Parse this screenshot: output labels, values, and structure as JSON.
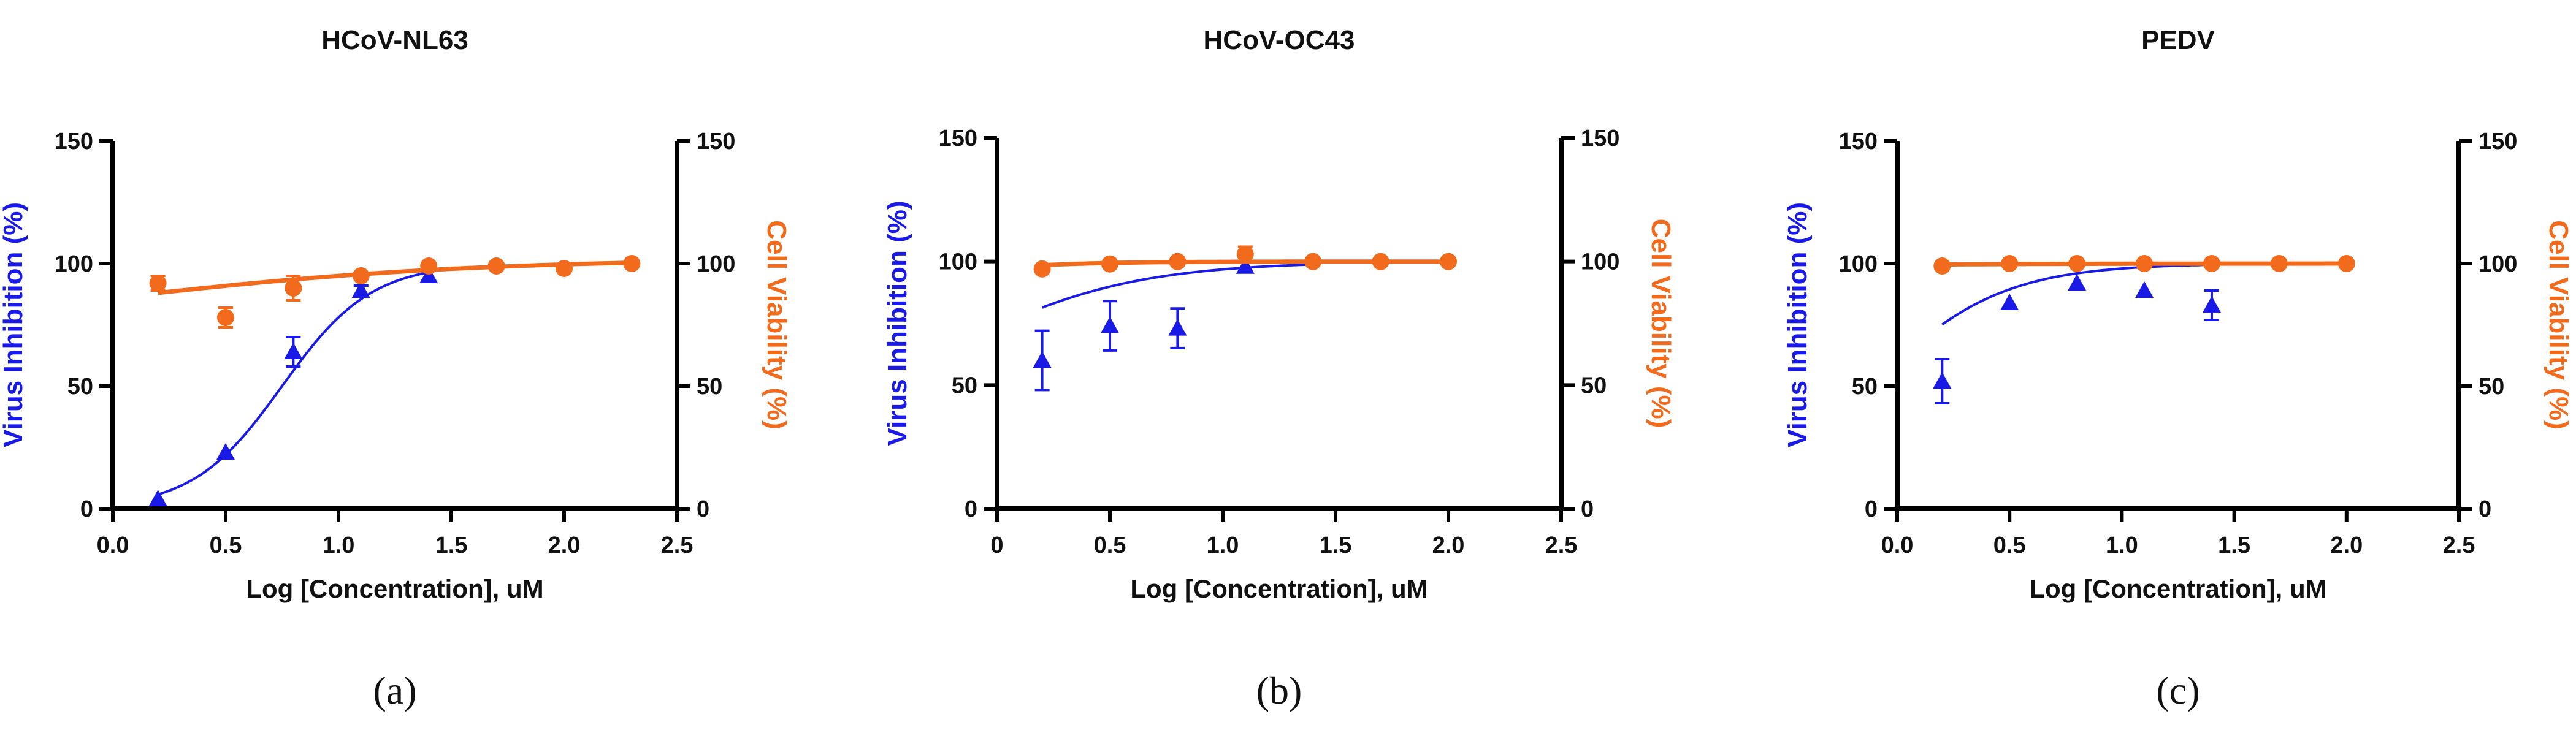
{
  "colors": {
    "inhibition": "#1a1ae6",
    "viability": "#f26a1b",
    "axis": "#000000"
  },
  "chart_data": [
    {
      "type": "scatter",
      "title": "HCoV-NL63",
      "panel_label": "(a)",
      "xlabel": "Log [Concentration], uM",
      "ylabel_left": "Virus Inhibition (%)",
      "ylabel_right": "Cell Viability (%)",
      "xlim": [
        0,
        2.5
      ],
      "ylim_left": [
        0,
        150
      ],
      "ylim_right": [
        0,
        150
      ],
      "x_ticks": [
        "0.0",
        "0.5",
        "1.0",
        "1.5",
        "2.0",
        "2.5"
      ],
      "y_ticks_left": [
        "0",
        "50",
        "100",
        "150"
      ],
      "y_ticks_right": [
        "0",
        "50",
        "100",
        "150"
      ],
      "series": [
        {
          "name": "Virus Inhibition",
          "axis": "left",
          "marker": "triangle",
          "x": [
            0.2,
            0.5,
            0.8,
            1.1,
            1.4
          ],
          "y": [
            4,
            23,
            64,
            89,
            95
          ],
          "err": [
            0,
            0,
            6,
            2,
            2
          ],
          "fit": {
            "bottom": 0,
            "top": 100,
            "logec50": 0.75,
            "hill": 2.2,
            "xmin": 0.2,
            "xmax": 1.4
          }
        },
        {
          "name": "Cell Viability",
          "axis": "right",
          "marker": "circle",
          "x": [
            0.2,
            0.5,
            0.8,
            1.1,
            1.4,
            1.7,
            2.0,
            2.3
          ],
          "y": [
            92,
            78,
            90,
            95,
            99,
            99,
            98,
            100
          ],
          "err": [
            3,
            4,
            5,
            0,
            0,
            0,
            0,
            0
          ],
          "fit": {
            "bottom": 70,
            "top": 102,
            "logec50": 0.0,
            "hill": 0.55,
            "xmin": 0.2,
            "xmax": 2.3
          }
        }
      ]
    },
    {
      "type": "scatter",
      "title": "HCoV-OC43",
      "panel_label": "(b)",
      "xlabel": "Log [Concentration], uM",
      "ylabel_left": "Virus Inhibition (%)",
      "ylabel_right": "Cell Viability (%)",
      "xlim": [
        0,
        2.5
      ],
      "ylim_left": [
        0,
        150
      ],
      "ylim_right": [
        0,
        150
      ],
      "x_ticks": [
        "0",
        "0.5",
        "1.0",
        "1.5",
        "2.0",
        "2.5"
      ],
      "y_ticks_left": [
        "0",
        "50",
        "100",
        "150"
      ],
      "y_ticks_right": [
        "0",
        "50",
        "100",
        "150"
      ],
      "series": [
        {
          "name": "Virus Inhibition",
          "axis": "left",
          "marker": "triangle",
          "x": [
            0.2,
            0.5,
            0.8,
            1.1
          ],
          "y": [
            60,
            74,
            73,
            98
          ],
          "err": [
            12,
            10,
            8,
            0
          ],
          "fit": {
            "bottom": 30,
            "top": 100,
            "logec50": -0.2,
            "hill": 1.1,
            "xmin": 0.2,
            "xmax": 1.4
          }
        },
        {
          "name": "Cell Viability",
          "axis": "right",
          "marker": "circle",
          "x": [
            0.2,
            0.5,
            0.8,
            1.1,
            1.4,
            1.7,
            2.0
          ],
          "y": [
            97,
            99,
            100,
            103,
            100,
            100,
            100
          ],
          "err": [
            0,
            0,
            0,
            3,
            0,
            0,
            0
          ],
          "fit": {
            "bottom": 90,
            "top": 100,
            "logec50": -0.3,
            "hill": 1.5,
            "xmin": 0.2,
            "xmax": 2.0
          }
        }
      ]
    },
    {
      "type": "scatter",
      "title": "PEDV",
      "panel_label": "(c)",
      "xlabel": "Log [Concentration], uM",
      "ylabel_left": "Virus Inhibition (%)",
      "ylabel_right": "Cell Viability (%)",
      "xlim": [
        0,
        2.5
      ],
      "ylim_left": [
        0,
        150
      ],
      "ylim_right": [
        0,
        150
      ],
      "x_ticks": [
        "0.0",
        "0.5",
        "1.0",
        "1.5",
        "2.0",
        "2.5"
      ],
      "y_ticks_left": [
        "0",
        "50",
        "100",
        "150"
      ],
      "y_ticks_right": [
        "0",
        "50",
        "100",
        "150"
      ],
      "series": [
        {
          "name": "Virus Inhibition",
          "axis": "left",
          "marker": "triangle",
          "x": [
            0.2,
            0.5,
            0.8,
            1.1,
            1.4
          ],
          "y": [
            52,
            84,
            92,
            89,
            83
          ],
          "err": [
            9,
            0,
            0,
            0,
            6
          ],
          "fit": {
            "bottom": 0,
            "top": 100,
            "logec50": -0.12,
            "hill": 1.5,
            "xmin": 0.2,
            "xmax": 1.4
          }
        },
        {
          "name": "Cell Viability",
          "axis": "right",
          "marker": "circle",
          "x": [
            0.2,
            0.5,
            0.8,
            1.1,
            1.4,
            1.7,
            2.0
          ],
          "y": [
            99,
            100,
            100,
            100,
            100,
            100,
            100
          ],
          "err": [
            0,
            0,
            0,
            0,
            0,
            0,
            0
          ],
          "fit": {
            "bottom": 99,
            "top": 100,
            "logec50": 0.0,
            "hill": 1.0,
            "xmin": 0.2,
            "xmax": 2.0
          }
        }
      ]
    }
  ]
}
